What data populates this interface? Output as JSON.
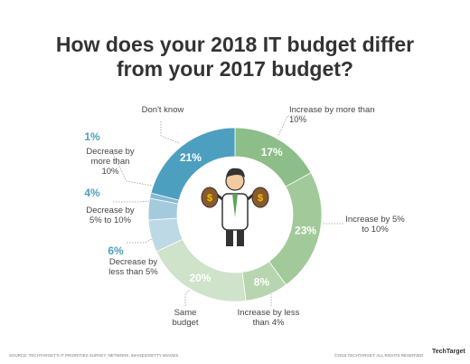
{
  "title_lines": [
    "How does your 2018 IT budget differ",
    "from your 2017 budget?"
  ],
  "chart_data": {
    "type": "donut",
    "categories": [
      "Increase by more than 10%",
      "Increase by 5% to 10%",
      "Increase by less than 4%",
      "Same budget",
      "Decrease by less than 5%",
      "Decrease by 5% to 10%",
      "Decrease by more than 10%",
      "Don't know"
    ],
    "values": [
      17,
      23,
      8,
      20,
      6,
      4,
      1,
      21
    ],
    "value_labels": [
      "17%",
      "23%",
      "8%",
      "20%",
      "6%",
      "4%",
      "1%",
      "21%"
    ],
    "colors": [
      "#8dbd88",
      "#a2c99a",
      "#b7d5af",
      "#cfe2ca",
      "#bcd9e5",
      "#a3cbdd",
      "#86b9d1",
      "#4d9fc0"
    ]
  },
  "footer": {
    "source": "SOURCE: TECHTARGET'S IT PRIORITIES SURVEY; NETWORK: IMAGES/GETTY IMAGES",
    "copyright": "©2018 TECHTARGET. ALL RIGHTS RESERVED",
    "logo": "TechTarget"
  }
}
